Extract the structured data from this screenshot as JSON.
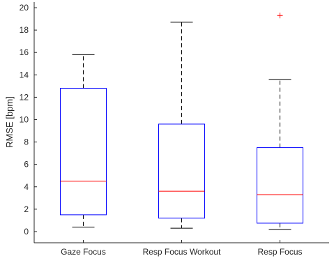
{
  "chart_data": {
    "type": "box",
    "title": "",
    "xlabel": "",
    "ylabel": "RMSE [bpm]",
    "ylim": [
      -1,
      20.5
    ],
    "yticks": [
      0,
      2,
      4,
      6,
      8,
      10,
      12,
      14,
      16,
      18,
      20
    ],
    "categories": [
      "Gaze Focus",
      "Resp Focus Workout",
      "Resp Focus"
    ],
    "boxes": [
      {
        "category": "Gaze Focus",
        "whisker_low": 0.4,
        "q1": 1.5,
        "median": 4.5,
        "q3": 12.8,
        "whisker_high": 15.8,
        "outliers": []
      },
      {
        "category": "Resp Focus Workout",
        "whisker_low": 0.3,
        "q1": 1.2,
        "median": 3.6,
        "q3": 9.6,
        "whisker_high": 18.7,
        "outliers": []
      },
      {
        "category": "Resp Focus",
        "whisker_low": 0.2,
        "q1": 0.75,
        "median": 3.3,
        "q3": 7.5,
        "whisker_high": 13.6,
        "outliers": [
          19.3
        ]
      }
    ],
    "grid": false,
    "colors": {
      "box": "#0000ff",
      "median": "#ff0000",
      "whisker": "#000000",
      "outlier": "#ff0000",
      "axis": "#262626"
    }
  }
}
